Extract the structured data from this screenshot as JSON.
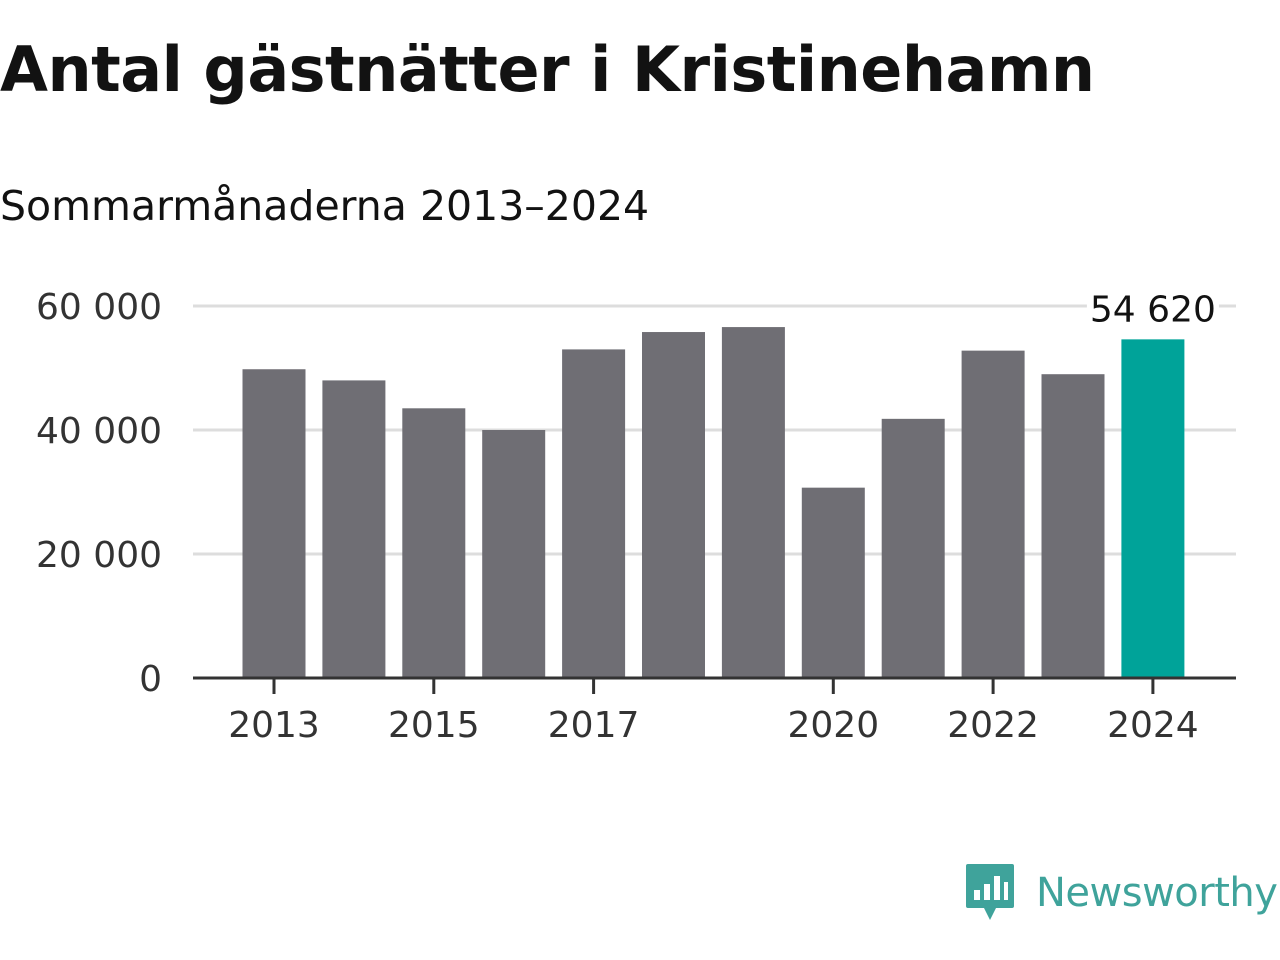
{
  "header": {
    "title": "Antal gästnätter i Kristinehamn",
    "subtitle": "Sommarmånaderna 2013–2024"
  },
  "brand": {
    "name": "Newsworthy",
    "logo_icon": "newsworthy-logo-icon",
    "color": "#3fa39b"
  },
  "chart_data": {
    "type": "bar",
    "title": "Antal gästnätter i Kristinehamn",
    "subtitle": "Sommarmånaderna 2013–2024",
    "xlabel": "",
    "ylabel": "",
    "categories": [
      "2013",
      "2014",
      "2015",
      "2016",
      "2017",
      "2018",
      "2019",
      "2020",
      "2021",
      "2022",
      "2023",
      "2024"
    ],
    "values": [
      49800,
      48000,
      43500,
      40000,
      53000,
      55800,
      56600,
      30700,
      41800,
      52800,
      49000,
      54620
    ],
    "x_tick_labels": [
      "2013",
      "2015",
      "2017",
      "2020",
      "2022",
      "2024"
    ],
    "y_ticks": [
      0,
      20000,
      40000,
      60000
    ],
    "y_tick_labels": [
      "0",
      "20 000",
      "40 000",
      "60 000"
    ],
    "ylim": [
      0,
      60000
    ],
    "grid": true,
    "highlight_index": 11,
    "highlight_label": "54 620",
    "bar_color": "#6f6e74",
    "highlight_color": "#00a399",
    "grid_color": "#dddddd",
    "axis_color": "#333333"
  }
}
